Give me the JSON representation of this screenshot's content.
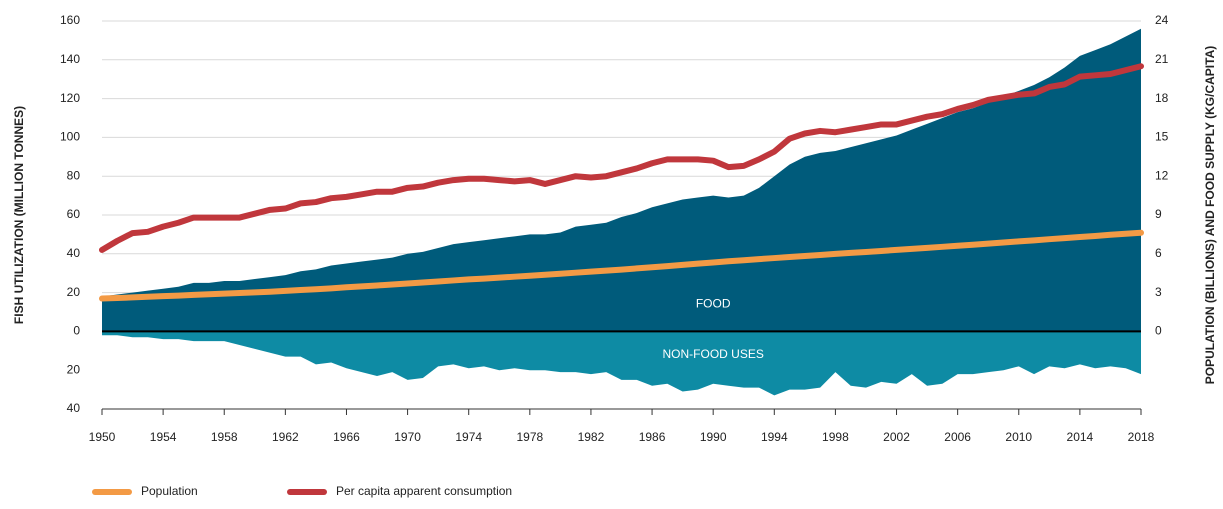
{
  "chart_data": {
    "type": "area-line",
    "ylabel": "FISH UTILIZATION (MILLION TONNES)",
    "y2label": "POPULATION (BILLIONS) AND FOOD SUPPLY (KG/CAPITA)",
    "x": [
      1950,
      1951,
      1952,
      1953,
      1954,
      1955,
      1956,
      1957,
      1958,
      1959,
      1960,
      1961,
      1962,
      1963,
      1964,
      1965,
      1966,
      1967,
      1968,
      1969,
      1970,
      1971,
      1972,
      1973,
      1974,
      1975,
      1976,
      1977,
      1978,
      1979,
      1980,
      1981,
      1982,
      1983,
      1984,
      1985,
      1986,
      1987,
      1988,
      1989,
      1990,
      1991,
      1992,
      1993,
      1994,
      1995,
      1996,
      1997,
      1998,
      1999,
      2000,
      2001,
      2002,
      2003,
      2004,
      2005,
      2006,
      2007,
      2008,
      2009,
      2010,
      2011,
      2012,
      2013,
      2014,
      2015,
      2016,
      2017,
      2018
    ],
    "xlim": [
      1950,
      2018
    ],
    "xticks": [
      1950,
      1954,
      1958,
      1962,
      1966,
      1970,
      1974,
      1978,
      1982,
      1986,
      1990,
      1994,
      1998,
      2002,
      2006,
      2010,
      2014,
      2018
    ],
    "ylim": [
      -40,
      160
    ],
    "yticks": [
      {
        "value": -40,
        "label": "40"
      },
      {
        "value": -20,
        "label": "20"
      },
      0,
      20,
      40,
      60,
      80,
      100,
      120,
      140,
      160
    ],
    "y2lim": [
      -6,
      24
    ],
    "y2ticks": [
      0,
      3,
      6,
      9,
      12,
      15,
      18,
      21,
      24
    ],
    "grid": true,
    "series": [
      {
        "name": "FOOD",
        "kind": "area",
        "color": "#005b7b",
        "values": [
          18,
          19,
          20,
          21,
          22,
          23,
          25,
          25,
          26,
          26,
          27,
          28,
          29,
          31,
          32,
          34,
          35,
          36,
          37,
          38,
          40,
          41,
          43,
          45,
          46,
          47,
          48,
          49,
          50,
          50,
          51,
          54,
          55,
          56,
          59,
          61,
          64,
          66,
          68,
          69,
          70,
          69,
          70,
          74,
          80,
          86,
          90,
          92,
          93,
          95,
          97,
          99,
          101,
          104,
          107,
          110,
          113,
          115,
          118,
          121,
          124,
          127,
          131,
          136,
          142,
          145,
          148,
          152,
          156
        ]
      },
      {
        "name": "NON-FOOD USES",
        "kind": "area",
        "color": "#0e8ba4",
        "values": [
          -2,
          -2,
          -3,
          -3,
          -4,
          -4,
          -5,
          -5,
          -5,
          -7,
          -9,
          -11,
          -13,
          -13,
          -17,
          -16,
          -19,
          -21,
          -23,
          -21,
          -25,
          -24,
          -18,
          -17,
          -19,
          -18,
          -20,
          -19,
          -20,
          -20,
          -21,
          -21,
          -22,
          -21,
          -25,
          -25,
          -28,
          -27,
          -31,
          -30,
          -27,
          -28,
          -29,
          -29,
          -33,
          -30,
          -30,
          -29,
          -21,
          -28,
          -29,
          -26,
          -27,
          -22,
          -28,
          -27,
          -22,
          -22,
          -21,
          -20,
          -18,
          -22,
          -18,
          -19,
          -17,
          -19,
          -18,
          -19,
          -22
        ]
      },
      {
        "name": "Population",
        "kind": "line",
        "axis": "y2",
        "color": "#f39a45",
        "values": [
          2.54,
          2.58,
          2.63,
          2.68,
          2.73,
          2.77,
          2.82,
          2.87,
          2.92,
          2.97,
          3.02,
          3.07,
          3.13,
          3.2,
          3.26,
          3.33,
          3.41,
          3.48,
          3.55,
          3.63,
          3.7,
          3.78,
          3.86,
          3.94,
          4.02,
          4.08,
          4.16,
          4.23,
          4.3,
          4.38,
          4.46,
          4.54,
          4.62,
          4.7,
          4.78,
          4.87,
          4.96,
          5.05,
          5.14,
          5.24,
          5.33,
          5.42,
          5.5,
          5.59,
          5.67,
          5.75,
          5.83,
          5.91,
          5.99,
          6.07,
          6.14,
          6.22,
          6.3,
          6.38,
          6.46,
          6.54,
          6.62,
          6.7,
          6.79,
          6.87,
          6.96,
          7.04,
          7.13,
          7.21,
          7.3,
          7.38,
          7.47,
          7.55,
          7.63
        ]
      },
      {
        "name": "Per capita apparent consumption",
        "kind": "line",
        "axis": "y2",
        "color": "#c0373c",
        "values": [
          6.3,
          7.0,
          7.6,
          7.7,
          8.1,
          8.4,
          8.8,
          8.8,
          8.8,
          8.8,
          9.1,
          9.4,
          9.5,
          9.9,
          10.0,
          10.3,
          10.4,
          10.6,
          10.8,
          10.8,
          11.1,
          11.2,
          11.5,
          11.7,
          11.8,
          11.8,
          11.7,
          11.6,
          11.7,
          11.4,
          11.7,
          12.0,
          11.9,
          12.0,
          12.3,
          12.6,
          13.0,
          13.3,
          13.3,
          13.3,
          13.2,
          12.7,
          12.8,
          13.3,
          13.9,
          14.9,
          15.3,
          15.5,
          15.4,
          15.6,
          15.8,
          16.0,
          16.0,
          16.3,
          16.6,
          16.8,
          17.2,
          17.5,
          17.9,
          18.1,
          18.3,
          18.4,
          18.9,
          19.1,
          19.7,
          19.8,
          19.9,
          20.2,
          20.5
        ]
      }
    ]
  }
}
